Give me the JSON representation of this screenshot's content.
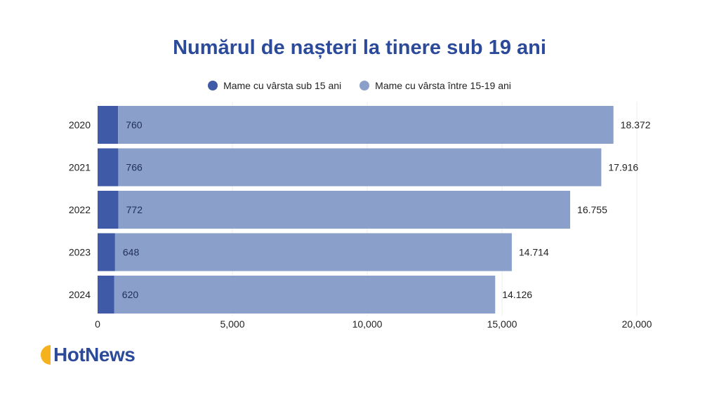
{
  "title": "Numărul de nașteri la tinere sub 19 ani",
  "legend": [
    {
      "label": "Mame cu vârsta sub 15 ani",
      "color": "#3f5aa6"
    },
    {
      "label": "Mame cu vârsta între 15-19 ani",
      "color": "#8a9fca"
    }
  ],
  "logo": {
    "text": "HotNews",
    "accent_color": "#f5b21c",
    "text_color": "#2b4a9a"
  },
  "chart_data": {
    "type": "bar",
    "orientation": "horizontal",
    "stacked": true,
    "categories": [
      "2020",
      "2021",
      "2022",
      "2023",
      "2024"
    ],
    "series": [
      {
        "name": "Mame cu vârsta sub 15 ani",
        "values": [
          760,
          766,
          772,
          648,
          620
        ],
        "labels": [
          "760",
          "766",
          "772",
          "648",
          "620"
        ],
        "color": "#3f5aa6"
      },
      {
        "name": "Mame cu vârsta între 15-19 ani",
        "values": [
          18372,
          17916,
          16755,
          14714,
          14126
        ],
        "labels": [
          "18.372",
          "17.916",
          "16.755",
          "14.714",
          "14.126"
        ],
        "color": "#8a9fca"
      }
    ],
    "xlim": [
      0,
      20000
    ],
    "xticks": [
      0,
      5000,
      10000,
      15000,
      20000
    ],
    "xtick_labels": [
      "0",
      "5,000",
      "10,000",
      "15,000",
      "20,000"
    ],
    "grid": "vertical",
    "legend_position": "top"
  }
}
